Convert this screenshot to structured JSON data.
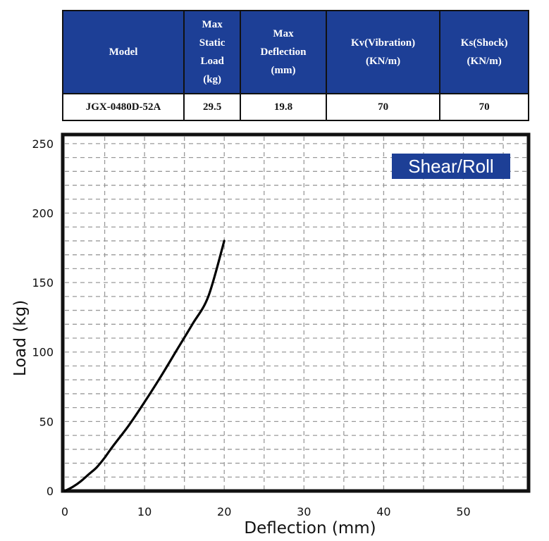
{
  "table": {
    "headers": [
      "Model",
      "Max Static Load (kg)",
      "Max Deflection (mm)",
      "Kv(Vibration) (KN/m)",
      "Ks(Shock) (KN/m)"
    ],
    "header_lines": [
      [
        "Model"
      ],
      [
        "Max",
        "Static",
        "Load",
        "(kg)"
      ],
      [
        "Max",
        "Deflection",
        "(mm)"
      ],
      [
        "Kv(Vibration)",
        "(KN/m)"
      ],
      [
        "Ks(Shock)",
        "(KN/m)"
      ]
    ],
    "rows": [
      [
        "JGX-0480D-52A",
        "29.5",
        "19.8",
        "70",
        "70"
      ]
    ],
    "header_bg": "#1d3f96"
  },
  "chart_data": {
    "type": "line",
    "title": "",
    "badge": "Shear/Roll",
    "xlabel": "Deflection (mm)",
    "ylabel": "Load (kg)",
    "xlim": [
      0,
      58
    ],
    "ylim": [
      0,
      255
    ],
    "xticks": [
      0,
      10,
      20,
      30,
      40,
      50
    ],
    "yticks": [
      0,
      50,
      100,
      150,
      200,
      250
    ],
    "grid": true,
    "legend": "none",
    "series": [
      {
        "name": "Shear/Roll",
        "color": "#000000",
        "x": [
          0,
          1,
          2,
          3,
          4,
          5,
          6,
          8,
          10,
          12,
          14,
          16,
          18,
          20
        ],
        "y": [
          0,
          3,
          7,
          12,
          17,
          24,
          32,
          47,
          64,
          82,
          101,
          120,
          140,
          180
        ]
      }
    ]
  }
}
